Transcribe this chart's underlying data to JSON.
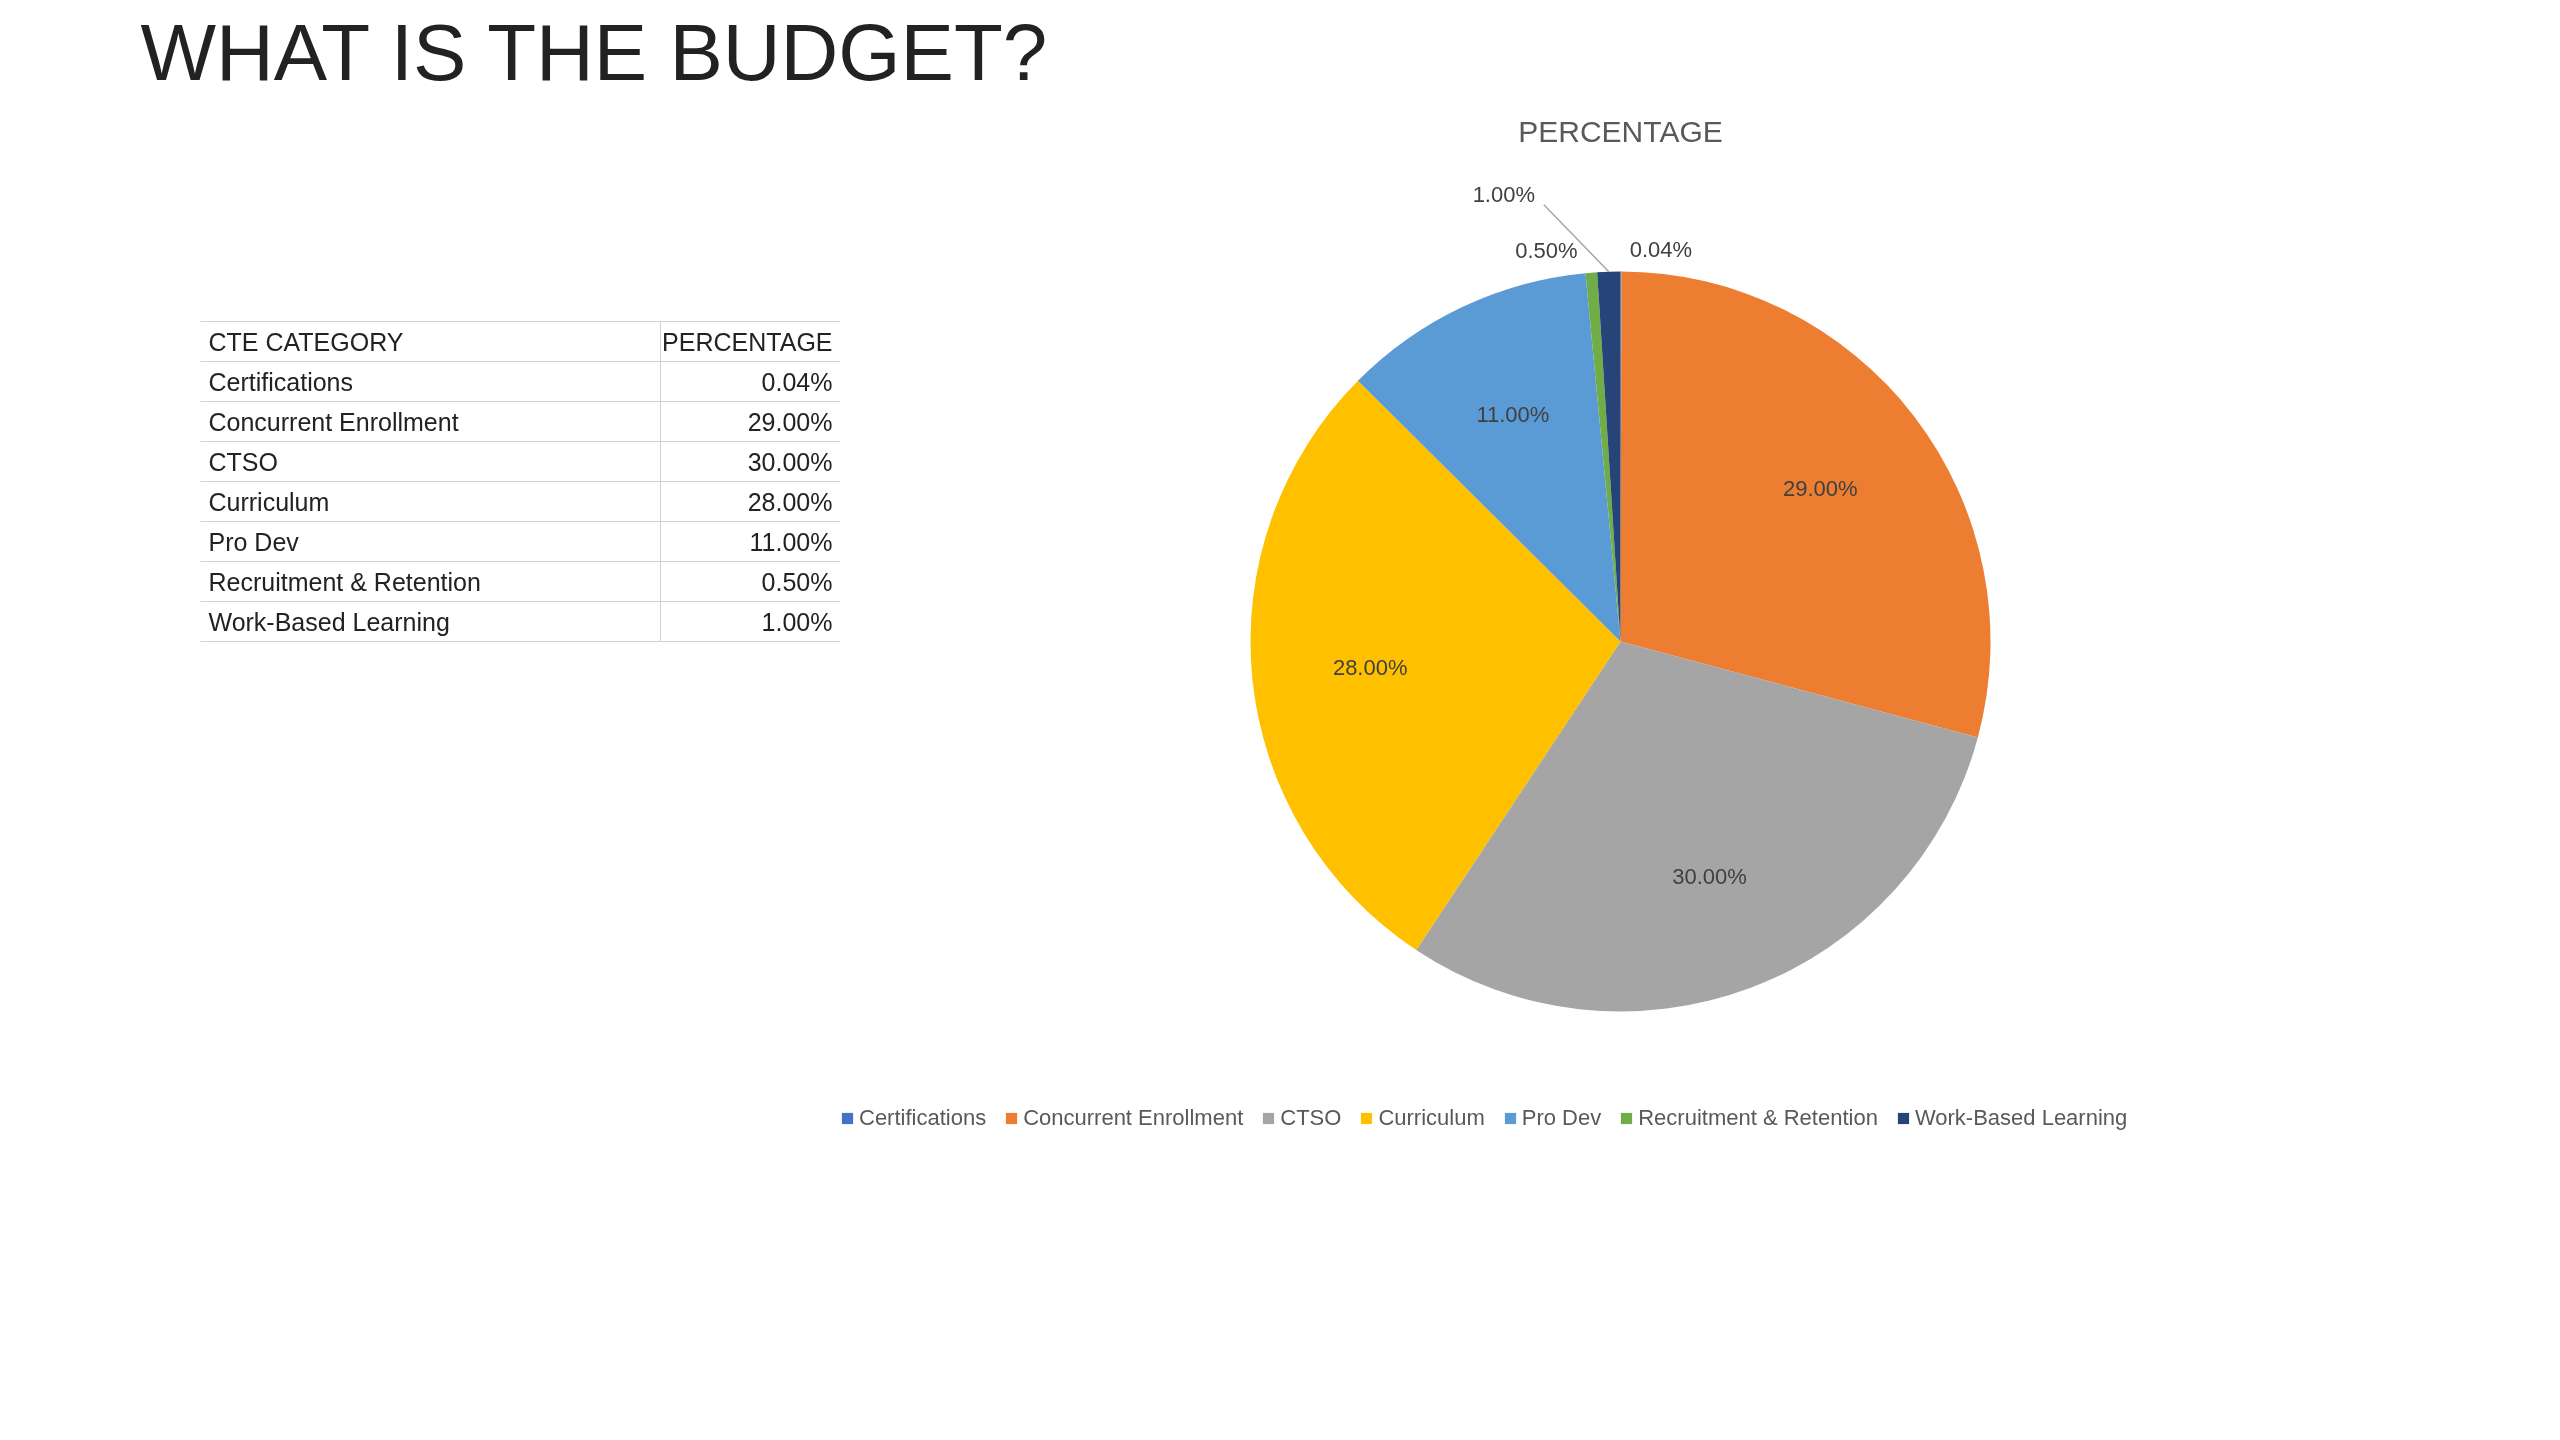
{
  "chart_data": {
    "type": "pie",
    "title": "WHAT IS THE BUDGET?",
    "subtitle": "PERCENTAGE",
    "categories": [
      "Certifications",
      "Concurrent Enrollment",
      "CTSO",
      "Curriculum",
      "Pro Dev",
      "Recruitment & Retention",
      "Work-Based Learning"
    ],
    "values": [
      0.04,
      29,
      30,
      28,
      11,
      0.5,
      1
    ],
    "colors": [
      "#4472c4",
      "#ed7d31",
      "#a5a5a5",
      "#ffc000",
      "#5b9bd5",
      "#70ad47",
      "#264478"
    ],
    "value_labels": [
      "0.04%",
      "29.00%",
      "30.00%",
      "28.00%",
      "11.00%",
      "0.50%",
      "1.00%"
    ],
    "annotations": [
      "CTE CATEGORY",
      "PERCENTAGE"
    ],
    "legend": "bottom"
  }
}
